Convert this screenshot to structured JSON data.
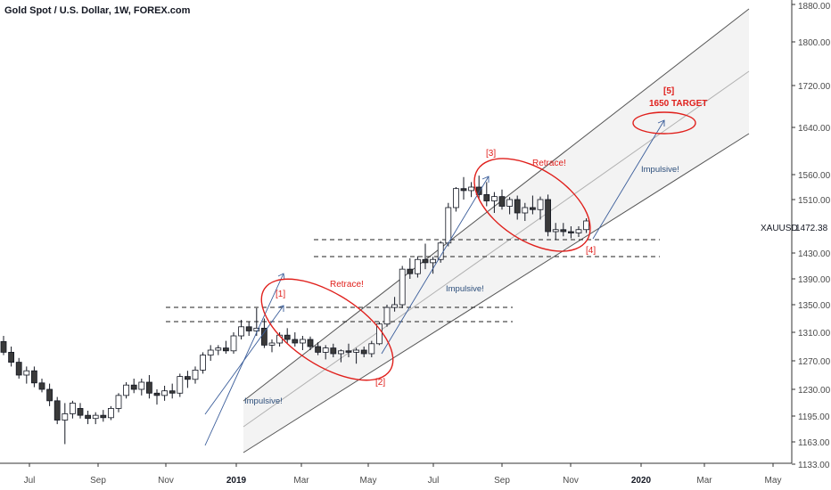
{
  "chart_data": {
    "type": "candlestick",
    "title": "Gold Spot / U.S. Dollar, 1W, FOREX.com",
    "symbol": "XAUUSD",
    "last_price": "1472.38",
    "y_ticks": [
      "1880.00",
      "1800.00",
      "1720.00",
      "1640.00",
      "1560.00",
      "1510.00",
      "1430.00",
      "1390.00",
      "1350.00",
      "1310.00",
      "1270.00",
      "1230.00",
      "1195.00",
      "1163.00",
      "1133.00"
    ],
    "x_ticks": [
      {
        "label": "Jul",
        "bold": false
      },
      {
        "label": "Sep",
        "bold": false
      },
      {
        "label": "Nov",
        "bold": false
      },
      {
        "label": "2019",
        "bold": true
      },
      {
        "label": "Mar",
        "bold": false
      },
      {
        "label": "May",
        "bold": false
      },
      {
        "label": "Jul",
        "bold": false
      },
      {
        "label": "Sep",
        "bold": false
      },
      {
        "label": "Nov",
        "bold": false
      },
      {
        "label": "2020",
        "bold": true
      },
      {
        "label": "Mar",
        "bold": false
      },
      {
        "label": "May",
        "bold": false
      }
    ],
    "annotations": {
      "w1": "[1]",
      "w2": "[2]",
      "w3": "[3]",
      "w4": "[4]",
      "w5": "[5]",
      "target": "1650 TARGET",
      "retrace_1": "Retrace!",
      "retrace_2": "Retrace!",
      "impulse_1": "Impulsive!",
      "impulse_2": "Impulsive!",
      "impulse_3": "Impulsive!"
    },
    "candles": [
      [
        1297,
        1305,
        1278,
        1282
      ],
      [
        1282,
        1290,
        1262,
        1268
      ],
      [
        1268,
        1274,
        1245,
        1250
      ],
      [
        1250,
        1262,
        1238,
        1256
      ],
      [
        1256,
        1262,
        1233,
        1239
      ],
      [
        1239,
        1245,
        1226,
        1230
      ],
      [
        1230,
        1238,
        1208,
        1215
      ],
      [
        1215,
        1220,
        1185,
        1190
      ],
      [
        1190,
        1212,
        1160,
        1198
      ],
      [
        1198,
        1215,
        1192,
        1212
      ],
      [
        1205,
        1212,
        1192,
        1196
      ],
      [
        1196,
        1202,
        1185,
        1192
      ],
      [
        1192,
        1200,
        1185,
        1196
      ],
      [
        1196,
        1203,
        1188,
        1193
      ],
      [
        1193,
        1208,
        1190,
        1205
      ],
      [
        1205,
        1225,
        1200,
        1222
      ],
      [
        1222,
        1240,
        1218,
        1236
      ],
      [
        1236,
        1245,
        1225,
        1230
      ],
      [
        1230,
        1245,
        1222,
        1240
      ],
      [
        1240,
        1250,
        1218,
        1225
      ],
      [
        1225,
        1230,
        1210,
        1222
      ],
      [
        1222,
        1235,
        1215,
        1228
      ],
      [
        1228,
        1238,
        1218,
        1225
      ],
      [
        1225,
        1252,
        1220,
        1248
      ],
      [
        1248,
        1256,
        1232,
        1244
      ],
      [
        1244,
        1262,
        1238,
        1257
      ],
      [
        1257,
        1282,
        1252,
        1278
      ],
      [
        1278,
        1292,
        1270,
        1285
      ],
      [
        1285,
        1292,
        1278,
        1288
      ],
      [
        1288,
        1298,
        1280,
        1284
      ],
      [
        1284,
        1310,
        1280,
        1305
      ],
      [
        1305,
        1328,
        1300,
        1318
      ],
      [
        1318,
        1325,
        1305,
        1312
      ],
      [
        1312,
        1345,
        1305,
        1316
      ],
      [
        1316,
        1330,
        1288,
        1292
      ],
      [
        1292,
        1300,
        1282,
        1295
      ],
      [
        1295,
        1310,
        1290,
        1306
      ],
      [
        1306,
        1316,
        1295,
        1300
      ],
      [
        1300,
        1310,
        1290,
        1295
      ],
      [
        1295,
        1305,
        1285,
        1300
      ],
      [
        1300,
        1304,
        1285,
        1290
      ],
      [
        1290,
        1296,
        1278,
        1282
      ],
      [
        1282,
        1292,
        1272,
        1288
      ],
      [
        1288,
        1294,
        1275,
        1280
      ],
      [
        1280,
        1286,
        1268,
        1284
      ],
      [
        1284,
        1294,
        1275,
        1282
      ],
      [
        1282,
        1288,
        1266,
        1285
      ],
      [
        1285,
        1290,
        1275,
        1280
      ],
      [
        1280,
        1298,
        1275,
        1294
      ],
      [
        1294,
        1325,
        1292,
        1322
      ],
      [
        1322,
        1350,
        1318,
        1346
      ],
      [
        1346,
        1362,
        1340,
        1350
      ],
      [
        1350,
        1410,
        1345,
        1405
      ],
      [
        1405,
        1422,
        1390,
        1398
      ],
      [
        1398,
        1425,
        1392,
        1420
      ],
      [
        1420,
        1444,
        1405,
        1415
      ],
      [
        1415,
        1424,
        1398,
        1420
      ],
      [
        1420,
        1448,
        1415,
        1445
      ],
      [
        1445,
        1505,
        1440,
        1498
      ],
      [
        1498,
        1535,
        1492,
        1532
      ],
      [
        1532,
        1555,
        1510,
        1528
      ],
      [
        1528,
        1545,
        1515,
        1535
      ],
      [
        1535,
        1558,
        1512,
        1520
      ],
      [
        1520,
        1545,
        1500,
        1508
      ],
      [
        1508,
        1525,
        1490,
        1516
      ],
      [
        1516,
        1530,
        1495,
        1500
      ],
      [
        1500,
        1515,
        1488,
        1510
      ],
      [
        1510,
        1518,
        1480,
        1490
      ],
      [
        1490,
        1505,
        1478,
        1498
      ],
      [
        1498,
        1518,
        1488,
        1495
      ],
      [
        1495,
        1516,
        1480,
        1510
      ],
      [
        1510,
        1520,
        1455,
        1462
      ],
      [
        1462,
        1475,
        1450,
        1465
      ],
      [
        1465,
        1475,
        1455,
        1462
      ],
      [
        1462,
        1470,
        1452,
        1460
      ],
      [
        1460,
        1470,
        1454,
        1465
      ],
      [
        1465,
        1482,
        1460,
        1478
      ]
    ]
  }
}
